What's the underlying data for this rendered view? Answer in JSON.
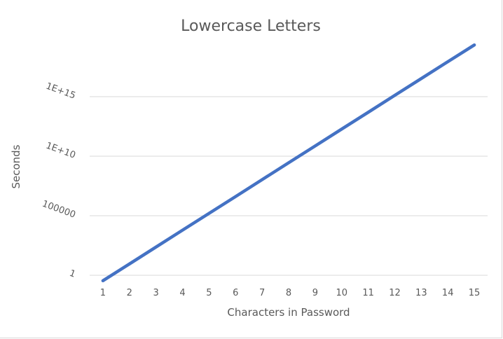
{
  "chart_data": {
    "type": "line",
    "title": "Lowercase Letters",
    "xlabel": "Characters in Password",
    "ylabel": "Seconds",
    "x": [
      1,
      2,
      3,
      4,
      5,
      6,
      7,
      8,
      9,
      10,
      11,
      12,
      13,
      14,
      15
    ],
    "y_scale": "log",
    "y_ticks": [
      1,
      100000,
      10000000000,
      1000000000000000
    ],
    "y_tick_labels": [
      "1",
      "100000",
      "1E+10",
      "1E+15"
    ],
    "ylim": [
      1,
      1e+19
    ],
    "grid": true,
    "series": [
      {
        "color": "#4472c4",
        "values": [
          0.35,
          9,
          235,
          6100,
          158000,
          4100000,
          107000000,
          2800000000,
          72000000000,
          1900000000000,
          49000000000000,
          1300000000000000,
          33000000000000000,
          860000000000000000,
          22000000000000000000
        ]
      }
    ]
  }
}
